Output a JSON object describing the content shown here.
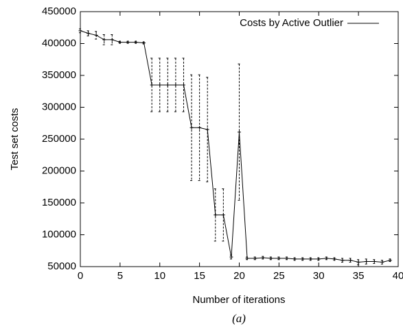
{
  "chart_data": {
    "type": "line",
    "xlabel": "Number of iterations",
    "ylabel": "Test set costs",
    "caption": "(a)",
    "legend": "top-right",
    "x": [
      0,
      1,
      2,
      3,
      4,
      5,
      6,
      7,
      8,
      9,
      10,
      11,
      12,
      13,
      14,
      15,
      16,
      17,
      18,
      19,
      20,
      21,
      22,
      23,
      24,
      25,
      26,
      27,
      28,
      29,
      30,
      31,
      32,
      33,
      34,
      35,
      36,
      37,
      38,
      39
    ],
    "series": [
      {
        "name": "Costs by Active Outlier",
        "color": "#000000",
        "values": [
          420000,
          416000,
          413000,
          406000,
          406000,
          402000,
          402000,
          402000,
          401000,
          335000,
          335000,
          335000,
          335000,
          335000,
          268000,
          268000,
          265000,
          131000,
          131000,
          65000,
          261000,
          63000,
          63000,
          64000,
          63000,
          63000,
          63000,
          62000,
          62000,
          62000,
          62000,
          63000,
          62000,
          60000,
          60000,
          57000,
          58000,
          58000,
          57000,
          60000
        ],
        "errors": [
          3000,
          4000,
          6000,
          8000,
          8000,
          1500,
          1500,
          1500,
          1500,
          42000,
          42000,
          42000,
          42000,
          42000,
          83000,
          83000,
          82000,
          41000,
          41000,
          3000,
          107000,
          2000,
          2000,
          2000,
          2000,
          2000,
          2000,
          2000,
          2000,
          2000,
          2000,
          2000,
          2000,
          3000,
          3000,
          4000,
          4000,
          3000,
          3000,
          2000
        ]
      }
    ],
    "xlim": [
      0,
      40
    ],
    "xticks": [
      0,
      5,
      10,
      15,
      20,
      25,
      30,
      35,
      40
    ],
    "ylim": [
      50000,
      450000
    ],
    "yticks": [
      50000,
      100000,
      150000,
      200000,
      250000,
      300000,
      350000,
      400000,
      450000
    ]
  }
}
